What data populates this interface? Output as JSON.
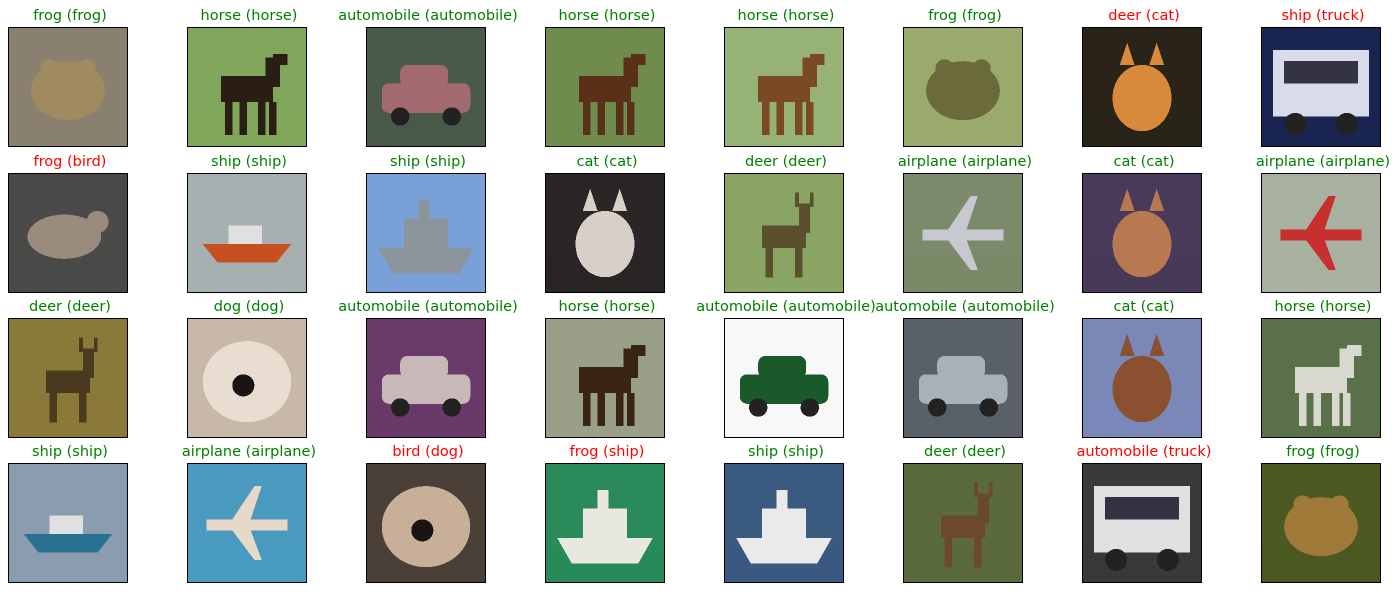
{
  "colors": {
    "correct": "#008000",
    "wrong": "#ff0000"
  },
  "rows": [
    [
      {
        "label": "frog (frog)",
        "correct": true,
        "subject": "frog",
        "bg": "#8a8070",
        "fg": "#a08a60"
      },
      {
        "label": "horse (horse)",
        "correct": true,
        "subject": "horse",
        "bg": "#7fa65a",
        "fg": "#2a1d14"
      },
      {
        "label": "automobile (automobile)",
        "correct": true,
        "subject": "car",
        "bg": "#4a5a4a",
        "fg": "#a36a70"
      },
      {
        "label": "horse (horse)",
        "correct": true,
        "subject": "horse",
        "bg": "#6f8c4c",
        "fg": "#5a3018"
      },
      {
        "label": "horse (horse)",
        "correct": true,
        "subject": "horse",
        "bg": "#96b276",
        "fg": "#7a4a24"
      },
      {
        "label": "frog (frog)",
        "correct": true,
        "subject": "frog",
        "bg": "#9aaa6c",
        "fg": "#6a6a3a"
      },
      {
        "label": "deer (cat)",
        "correct": false,
        "subject": "cat",
        "bg": "#2a2418",
        "fg": "#d88a3a"
      },
      {
        "label": "ship (truck)",
        "correct": false,
        "subject": "truck",
        "bg": "#1a2450",
        "fg": "#d8dce8"
      }
    ],
    [
      {
        "label": "frog (bird)",
        "correct": false,
        "subject": "bird",
        "bg": "#4a4a48",
        "fg": "#9a8c7c"
      },
      {
        "label": "ship (ship)",
        "correct": true,
        "subject": "boat",
        "bg": "#a6b0b0",
        "fg": "#c85020"
      },
      {
        "label": "ship (ship)",
        "correct": true,
        "subject": "ship",
        "bg": "#7aa0d8",
        "fg": "#8c949c"
      },
      {
        "label": "cat (cat)",
        "correct": true,
        "subject": "cat",
        "bg": "#2a2626",
        "fg": "#d8d0c8"
      },
      {
        "label": "deer (deer)",
        "correct": true,
        "subject": "deer",
        "bg": "#8aa464",
        "fg": "#5a5030"
      },
      {
        "label": "airplane (airplane)",
        "correct": true,
        "subject": "plane",
        "bg": "#7a8a6a",
        "fg": "#c8c8d0"
      },
      {
        "label": "cat (cat)",
        "correct": true,
        "subject": "cat",
        "bg": "#4a3a5a",
        "fg": "#b87850"
      },
      {
        "label": "airplane (airplane)",
        "correct": true,
        "subject": "plane",
        "bg": "#a8b0a0",
        "fg": "#c83030"
      }
    ],
    [
      {
        "label": "deer (deer)",
        "correct": true,
        "subject": "deer",
        "bg": "#8a7a3a",
        "fg": "#4a3a20"
      },
      {
        "label": "dog (dog)",
        "correct": true,
        "subject": "dog",
        "bg": "#c8b8a8",
        "fg": "#e8ddd0"
      },
      {
        "label": "automobile (automobile)",
        "correct": true,
        "subject": "car",
        "bg": "#6a3a6a",
        "fg": "#c8b8b8"
      },
      {
        "label": "horse (horse)",
        "correct": true,
        "subject": "horse",
        "bg": "#9aa088",
        "fg": "#3a2414"
      },
      {
        "label": "automobile (automobile)",
        "correct": true,
        "subject": "car",
        "bg": "#f8f8f8",
        "fg": "#1a5a2a"
      },
      {
        "label": "automobile (automobile)",
        "correct": true,
        "subject": "car",
        "bg": "#5a6068",
        "fg": "#a8b0b8"
      },
      {
        "label": "cat (cat)",
        "correct": true,
        "subject": "cat",
        "bg": "#7a88b8",
        "fg": "#8a5030"
      },
      {
        "label": "horse (horse)",
        "correct": true,
        "subject": "horse",
        "bg": "#5a7048",
        "fg": "#d8d8d0"
      }
    ],
    [
      {
        "label": "ship (ship)",
        "correct": true,
        "subject": "boat",
        "bg": "#8a9cb0",
        "fg": "#2a7090"
      },
      {
        "label": "airplane (airplane)",
        "correct": true,
        "subject": "plane",
        "bg": "#4a9ac0",
        "fg": "#e8d8c8"
      },
      {
        "label": "bird (dog)",
        "correct": false,
        "subject": "dog",
        "bg": "#4a4038",
        "fg": "#c8b098"
      },
      {
        "label": "frog (ship)",
        "correct": false,
        "subject": "ship",
        "bg": "#2a8a5a",
        "fg": "#e8e8e0"
      },
      {
        "label": "ship (ship)",
        "correct": true,
        "subject": "ship",
        "bg": "#3a5a80",
        "fg": "#eaeaea"
      },
      {
        "label": "deer (deer)",
        "correct": true,
        "subject": "deer",
        "bg": "#5a6a3a",
        "fg": "#6a4a2a"
      },
      {
        "label": "automobile (truck)",
        "correct": false,
        "subject": "truck",
        "bg": "#3a3a3a",
        "fg": "#e0e0e0"
      },
      {
        "label": "frog (frog)",
        "correct": true,
        "subject": "frog",
        "bg": "#4a5a20",
        "fg": "#a07838"
      }
    ]
  ]
}
